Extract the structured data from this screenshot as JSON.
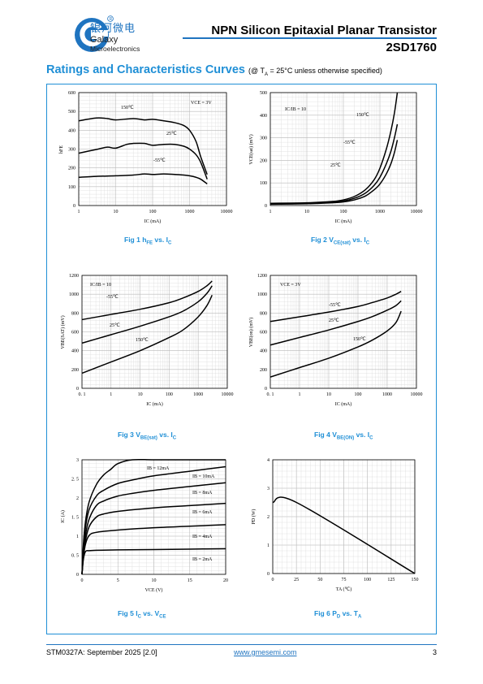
{
  "header": {
    "logo_cn": "银河微电",
    "logo_en1": "Galaxy",
    "logo_en2": "Microelectronics",
    "title": "NPN Silicon Epitaxial Planar Transistor",
    "part": "2SD1760"
  },
  "section": {
    "title": "Ratings and Characteristics Curves",
    "condition": "(@ T",
    "condition_sub": "A",
    "condition_rest": " = 25°C unless otherwise specified)"
  },
  "captions": {
    "fig1": {
      "pre": "Fig 1   h",
      "sub": "FE",
      "post": " vs. I",
      "sub2": "C"
    },
    "fig2": {
      "pre": "Fig 2   V",
      "sub": "CE(sat)",
      "post": " vs. I",
      "sub2": "C"
    },
    "fig3": {
      "pre": "Fig 3   V",
      "sub": "BE(sat)",
      "post": " vs. I",
      "sub2": "C"
    },
    "fig4": {
      "pre": "Fig 4   V",
      "sub": "BE(ON)",
      "post": " vs. I",
      "sub2": "C"
    },
    "fig5": {
      "pre": "Fig 5   I",
      "sub": "C",
      "post": " vs. V",
      "sub2": "CE"
    },
    "fig6": {
      "pre": "Fig 6   P",
      "sub": "D",
      "post": " vs. T",
      "sub2": "A"
    }
  },
  "footer": {
    "doc": "STM0327A: September 2025 [2.0]",
    "url": "www.gmesemi.com",
    "page": "3"
  },
  "colors": {
    "accent": "#1f8fd6",
    "grid": "#dcdcdc"
  },
  "chart_data": [
    {
      "id": "fig1",
      "type": "line",
      "xscale": "log",
      "xlim": [
        1,
        10000
      ],
      "ylim": [
        0,
        600
      ],
      "xticks": [
        1,
        10,
        100,
        1000,
        10000
      ],
      "yticks": [
        0,
        100,
        200,
        300,
        400,
        500,
        600
      ],
      "xlabel": "IC (mA)",
      "ylabel": "hFE",
      "note": "VCE = 3V",
      "series": [
        {
          "name": "150℃",
          "x": [
            1,
            3,
            6,
            10,
            30,
            60,
            100,
            200,
            400,
            700,
            1000,
            1500,
            2000,
            3000
          ],
          "y": [
            450,
            465,
            462,
            455,
            462,
            455,
            458,
            450,
            440,
            425,
            400,
            340,
            260,
            165
          ]
        },
        {
          "name": "25℃",
          "x": [
            1,
            3,
            6,
            10,
            20,
            30,
            60,
            100,
            200,
            400,
            700,
            1000,
            1500,
            2000,
            3000
          ],
          "y": [
            278,
            298,
            310,
            305,
            325,
            330,
            330,
            320,
            325,
            325,
            315,
            300,
            270,
            230,
            140
          ]
        },
        {
          "name": "-55℃",
          "x": [
            1,
            3,
            10,
            30,
            60,
            100,
            200,
            400,
            700,
            1000,
            1500,
            2000,
            3000
          ],
          "y": [
            150,
            155,
            158,
            162,
            168,
            165,
            168,
            165,
            162,
            158,
            150,
            140,
            115
          ]
        }
      ]
    },
    {
      "id": "fig2",
      "type": "line",
      "xscale": "log",
      "xlim": [
        1,
        10000
      ],
      "ylim": [
        0,
        500
      ],
      "xticks": [
        1,
        10,
        100,
        1000,
        10000
      ],
      "yticks": [
        0,
        100,
        200,
        300,
        400,
        500
      ],
      "xlabel": "IC (mA)",
      "ylabel": "VCE(sat) (mV)",
      "note": "IC/IB = 10",
      "series": [
        {
          "name": "150℃",
          "x": [
            1,
            10,
            50,
            100,
            200,
            400,
            700,
            1000,
            1500,
            2000,
            2500,
            3000
          ],
          "y": [
            10,
            12,
            18,
            25,
            40,
            70,
            115,
            165,
            250,
            330,
            410,
            500
          ]
        },
        {
          "name": "-55℃",
          "x": [
            1,
            10,
            50,
            100,
            200,
            400,
            700,
            1000,
            1500,
            2000,
            2500,
            3000
          ],
          "y": [
            8,
            10,
            15,
            20,
            32,
            55,
            90,
            125,
            185,
            240,
            300,
            360
          ]
        },
        {
          "name": "25℃",
          "x": [
            1,
            10,
            50,
            100,
            200,
            400,
            700,
            1000,
            1500,
            2000,
            2500,
            3000
          ],
          "y": [
            6,
            8,
            12,
            16,
            25,
            42,
            70,
            95,
            140,
            185,
            235,
            290
          ]
        }
      ]
    },
    {
      "id": "fig3",
      "type": "line",
      "xscale": "log",
      "xlim": [
        0.1,
        10000
      ],
      "ylim": [
        0,
        1200
      ],
      "xticks": [
        0.1,
        1,
        10,
        100,
        1000,
        10000
      ],
      "yticks": [
        0,
        200,
        400,
        600,
        800,
        1000,
        1200
      ],
      "xlabel": "IC (mA)",
      "ylabel": "VBE(SAT) (mV)",
      "note": "IC/IB = 10",
      "series": [
        {
          "name": "-55℃",
          "x": [
            0.1,
            1,
            10,
            100,
            300,
            1000,
            2000,
            3000
          ],
          "y": [
            730,
            785,
            840,
            910,
            960,
            1030,
            1090,
            1140
          ]
        },
        {
          "name": "25℃",
          "x": [
            0.1,
            1,
            10,
            100,
            300,
            1000,
            2000,
            3000
          ],
          "y": [
            480,
            570,
            660,
            760,
            820,
            920,
            1010,
            1090
          ]
        },
        {
          "name": "150℃",
          "x": [
            0.1,
            1,
            10,
            100,
            300,
            1000,
            2000,
            3000
          ],
          "y": [
            160,
            280,
            400,
            540,
            620,
            760,
            880,
            990
          ]
        }
      ]
    },
    {
      "id": "fig4",
      "type": "line",
      "xscale": "log",
      "xlim": [
        0.1,
        10000
      ],
      "ylim": [
        0,
        1200
      ],
      "xticks": [
        0.1,
        1,
        10,
        100,
        1000,
        10000
      ],
      "yticks": [
        0,
        200,
        400,
        600,
        800,
        1000,
        1200
      ],
      "xlabel": "IC (mA)",
      "ylabel": "VBE(on) (mV)",
      "note": "VCE = 3V",
      "series": [
        {
          "name": "-55℃",
          "x": [
            0.1,
            1,
            10,
            100,
            300,
            1000,
            2000,
            3000
          ],
          "y": [
            710,
            760,
            810,
            870,
            910,
            960,
            1000,
            1030
          ]
        },
        {
          "name": "25℃",
          "x": [
            0.1,
            1,
            10,
            100,
            300,
            1000,
            2000,
            3000
          ],
          "y": [
            460,
            540,
            620,
            710,
            760,
            830,
            880,
            930
          ]
        },
        {
          "name": "150℃",
          "x": [
            0.1,
            1,
            10,
            100,
            300,
            1000,
            2000,
            3000
          ],
          "y": [
            120,
            220,
            320,
            440,
            510,
            610,
            700,
            820
          ]
        }
      ]
    },
    {
      "id": "fig5",
      "type": "line",
      "xlim": [
        0,
        20
      ],
      "ylim": [
        0,
        3
      ],
      "xticks": [
        0,
        5,
        10,
        15,
        20
      ],
      "yticks": [
        0,
        0.5,
        1,
        1.5,
        2,
        2.5,
        3
      ],
      "ytick_labels": [
        "0",
        "0. 5",
        "1",
        "1. 5",
        "2",
        "2. 5",
        "3"
      ],
      "xlabel": "VCE (V)",
      "ylabel": "IC (A)",
      "series": [
        {
          "name": "IB = 12mA",
          "x": [
            0,
            0.2,
            0.5,
            1,
            2,
            3,
            4,
            5,
            7,
            10,
            15,
            20
          ],
          "y": [
            0,
            0.8,
            1.4,
            1.9,
            2.35,
            2.6,
            2.75,
            2.9,
            3.0,
            3.0,
            3.0,
            3.0
          ]
        },
        {
          "name": "IB = 10mA",
          "x": [
            0,
            0.2,
            0.5,
            1,
            2,
            3,
            5,
            7,
            10,
            15,
            20
          ],
          "y": [
            0,
            0.7,
            1.25,
            1.7,
            2.05,
            2.2,
            2.38,
            2.47,
            2.58,
            2.7,
            2.82
          ]
        },
        {
          "name": "IB = 8mA",
          "x": [
            0,
            0.2,
            0.5,
            1,
            2,
            3,
            5,
            7,
            10,
            15,
            20
          ],
          "y": [
            0,
            0.6,
            1.05,
            1.45,
            1.8,
            1.92,
            2.05,
            2.12,
            2.2,
            2.3,
            2.4
          ]
        },
        {
          "name": "IB = 6mA",
          "x": [
            0,
            0.2,
            0.5,
            1,
            2,
            3,
            5,
            10,
            15,
            20
          ],
          "y": [
            0,
            0.5,
            0.9,
            1.25,
            1.5,
            1.58,
            1.65,
            1.74,
            1.8,
            1.86
          ]
        },
        {
          "name": "IB = 4mA",
          "x": [
            0,
            0.2,
            0.5,
            1,
            2,
            5,
            10,
            15,
            20
          ],
          "y": [
            0,
            0.45,
            0.8,
            1.02,
            1.1,
            1.16,
            1.22,
            1.26,
            1.3
          ]
        },
        {
          "name": "IB = 2mA",
          "x": [
            0,
            0.2,
            0.5,
            1,
            2,
            5,
            10,
            15,
            20
          ],
          "y": [
            0,
            0.4,
            0.6,
            0.62,
            0.63,
            0.64,
            0.65,
            0.66,
            0.67
          ]
        }
      ]
    },
    {
      "id": "fig6",
      "type": "line",
      "xlim": [
        0,
        150
      ],
      "ylim": [
        0,
        4
      ],
      "xticks": [
        0,
        25,
        50,
        75,
        100,
        125,
        150
      ],
      "yticks": [
        0,
        1,
        2,
        3,
        4
      ],
      "xlabel": "TA (℃)",
      "ylabel": "PD (W)",
      "series": [
        {
          "name": "",
          "x": [
            0,
            25,
            150
          ],
          "y": [
            2.5,
            2.5,
            0
          ]
        }
      ]
    }
  ]
}
